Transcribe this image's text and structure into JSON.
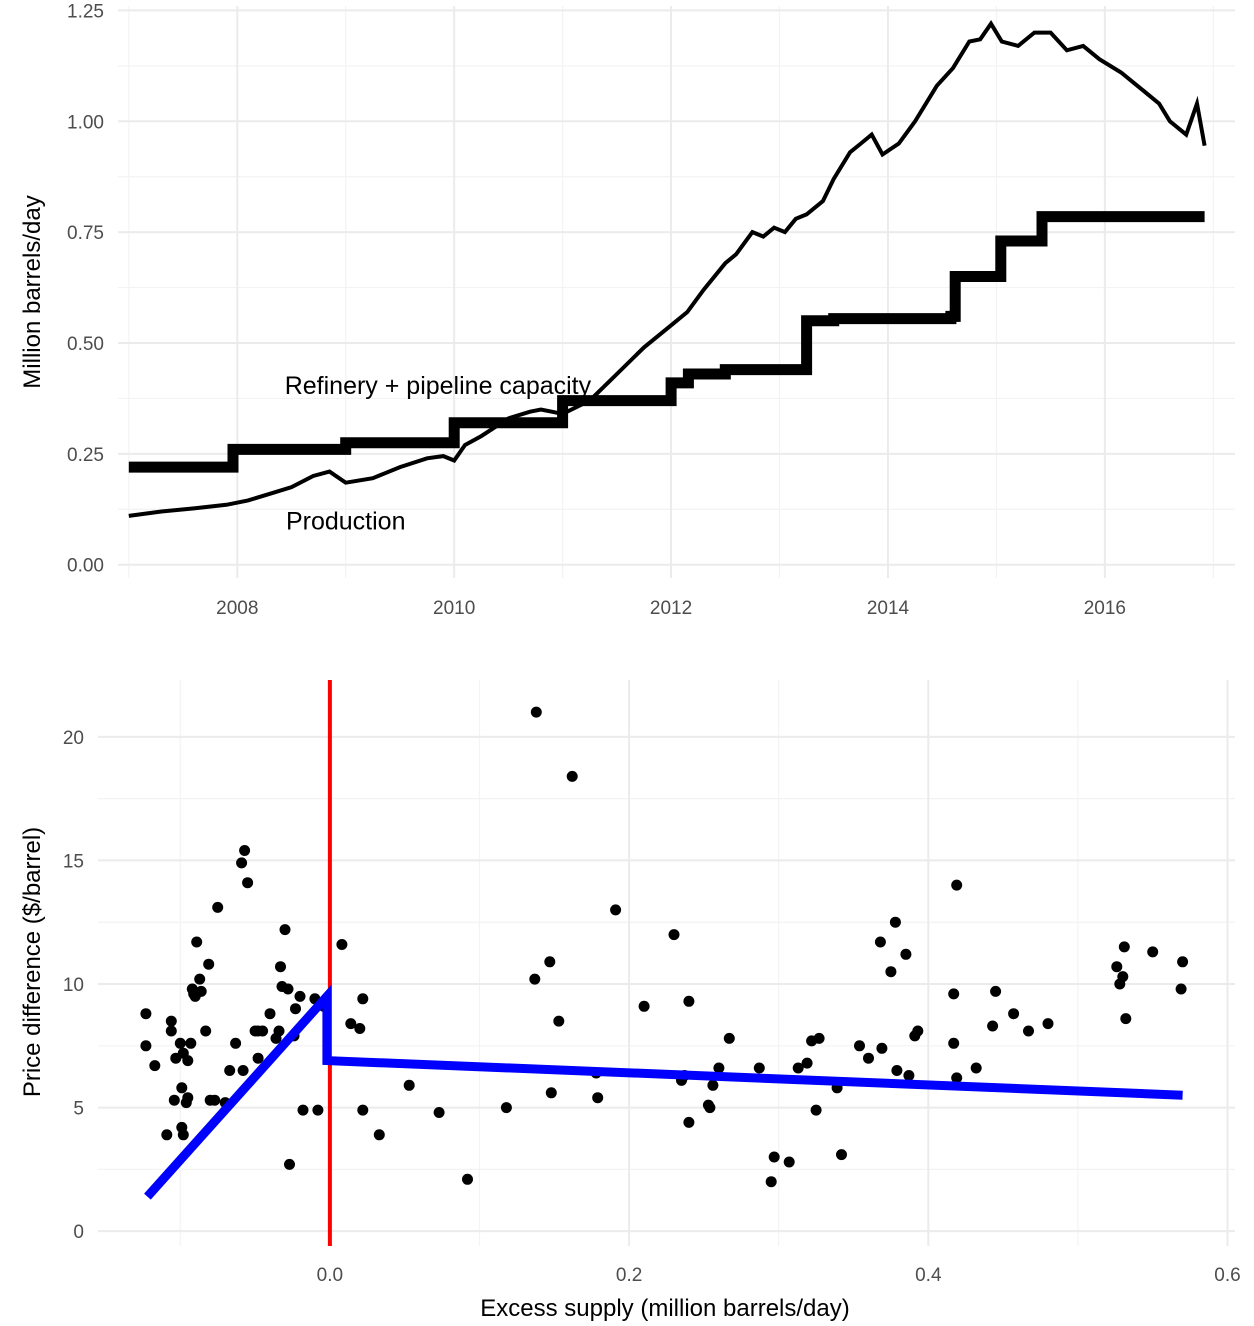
{
  "colors": {
    "background": "#ffffff",
    "grid": "#ebebeb",
    "series": "#000000",
    "vline": "#ff0000",
    "fit_line": "#0000ff",
    "points": "#000000"
  },
  "chart_data": [
    {
      "type": "line",
      "title": "",
      "xlabel": "",
      "ylabel": "Million barrels/day",
      "xlim": [
        2006.9,
        2017.2
      ],
      "ylim": [
        -0.03,
        1.26
      ],
      "x_ticks": [
        2008,
        2010,
        2012,
        2014,
        2016
      ],
      "x_tick_labels": [
        "2008",
        "2010",
        "2012",
        "2014",
        "2016"
      ],
      "y_ticks": [
        0,
        0.25,
        0.5,
        0.75,
        1.0,
        1.25
      ],
      "y_tick_labels": [
        "0.00",
        "0.25",
        "0.50",
        "0.75",
        "1.00",
        "1.25"
      ],
      "grid": true,
      "annotations": [
        {
          "text": "Refinery + pipeline capacity",
          "x": 2009.85,
          "y": 0.405
        },
        {
          "text": "Production",
          "x": 2009.0,
          "y": 0.1
        }
      ],
      "series": [
        {
          "name": "Refinery + pipeline capacity",
          "step": true,
          "x": [
            2007.0,
            2007.92,
            2007.96,
            2008.96,
            2009.0,
            2009.96,
            2010.0,
            2010.92,
            2011.0,
            2011.92,
            2012.0,
            2012.08,
            2012.16,
            2012.5,
            2013.2,
            2013.25,
            2013.5,
            2014.5,
            2014.58,
            2014.62,
            2014.96,
            2015.04,
            2015.34,
            2015.42,
            2016.92
          ],
          "y": [
            0.22,
            0.22,
            0.26,
            0.26,
            0.275,
            0.275,
            0.32,
            0.32,
            0.37,
            0.37,
            0.41,
            0.41,
            0.43,
            0.44,
            0.44,
            0.55,
            0.555,
            0.555,
            0.56,
            0.65,
            0.65,
            0.73,
            0.73,
            0.785,
            0.785
          ]
        },
        {
          "name": "Production",
          "step": false,
          "x": [
            2007.0,
            2007.3,
            2007.6,
            2007.9,
            2008.1,
            2008.3,
            2008.5,
            2008.7,
            2008.85,
            2009.0,
            2009.25,
            2009.5,
            2009.75,
            2009.9,
            2010.0,
            2010.1,
            2010.25,
            2010.5,
            2010.7,
            2010.8,
            2010.9,
            2011.0,
            2011.25,
            2011.5,
            2011.75,
            2012.0,
            2012.15,
            2012.3,
            2012.5,
            2012.6,
            2012.75,
            2012.85,
            2012.95,
            2013.05,
            2013.15,
            2013.25,
            2013.4,
            2013.5,
            2013.65,
            2013.75,
            2013.85,
            2013.95,
            2014.1,
            2014.25,
            2014.45,
            2014.6,
            2014.75,
            2014.85,
            2014.95,
            2015.05,
            2015.2,
            2015.35,
            2015.5,
            2015.65,
            2015.8,
            2015.95,
            2016.15,
            2016.3,
            2016.5,
            2016.6,
            2016.75,
            2016.85,
            2016.92
          ],
          "y": [
            0.11,
            0.12,
            0.127,
            0.135,
            0.145,
            0.16,
            0.175,
            0.2,
            0.21,
            0.185,
            0.195,
            0.22,
            0.24,
            0.245,
            0.235,
            0.27,
            0.29,
            0.33,
            0.345,
            0.35,
            0.345,
            0.34,
            0.37,
            0.43,
            0.49,
            0.54,
            0.57,
            0.62,
            0.68,
            0.7,
            0.75,
            0.74,
            0.76,
            0.75,
            0.78,
            0.79,
            0.82,
            0.87,
            0.93,
            0.95,
            0.97,
            0.925,
            0.95,
            1.0,
            1.08,
            1.12,
            1.18,
            1.185,
            1.22,
            1.18,
            1.17,
            1.2,
            1.2,
            1.16,
            1.17,
            1.14,
            1.11,
            1.08,
            1.04,
            1.0,
            0.97,
            1.04,
            0.945
          ]
        }
      ]
    },
    {
      "type": "scatter",
      "title": "",
      "xlabel": "Excess supply (million barrels/day)",
      "ylabel": "Price difference ($/barrel)",
      "xlim": [
        -0.155,
        0.605
      ],
      "ylim": [
        -0.6,
        22.3
      ],
      "x_ticks": [
        0.0,
        0.2,
        0.4,
        0.6
      ],
      "x_tick_labels": [
        "0.0",
        "0.2",
        "0.4",
        "0.6"
      ],
      "y_ticks": [
        0,
        5,
        10,
        15,
        20
      ],
      "y_tick_labels": [
        "0",
        "5",
        "10",
        "15",
        "20"
      ],
      "grid": true,
      "vline_x": 0.0,
      "fit_line": {
        "segments": [
          {
            "x": [
              -0.122,
              -0.002
            ],
            "y": [
              1.4,
              9.5
            ]
          },
          {
            "x": [
              -0.002,
              -0.002
            ],
            "y": [
              9.5,
              6.9
            ]
          },
          {
            "x": [
              -0.002,
              0.57
            ],
            "y": [
              6.9,
              5.5
            ]
          }
        ]
      },
      "points": {
        "x": [
          -0.123,
          -0.123,
          -0.117,
          -0.109,
          -0.106,
          -0.106,
          -0.104,
          -0.103,
          -0.1,
          -0.099,
          -0.099,
          -0.098,
          -0.098,
          -0.096,
          -0.095,
          -0.095,
          -0.093,
          -0.092,
          -0.091,
          -0.09,
          -0.089,
          -0.087,
          -0.086,
          -0.083,
          -0.081,
          -0.08,
          -0.077,
          -0.075,
          -0.07,
          -0.067,
          -0.063,
          -0.059,
          -0.057,
          -0.058,
          -0.055,
          -0.05,
          -0.048,
          -0.048,
          -0.045,
          -0.04,
          -0.036,
          -0.034,
          -0.033,
          -0.032,
          -0.03,
          -0.028,
          -0.027,
          -0.024,
          -0.023,
          -0.02,
          -0.018,
          -0.01,
          -0.008,
          -0.004,
          0.008,
          0.014,
          0.02,
          0.022,
          0.022,
          0.033,
          0.053,
          0.073,
          0.092,
          0.118,
          0.137,
          0.138,
          0.147,
          0.148,
          0.153,
          0.162,
          0.178,
          0.179,
          0.191,
          0.21,
          0.23,
          0.235,
          0.237,
          0.24,
          0.24,
          0.253,
          0.254,
          0.256,
          0.26,
          0.267,
          0.287,
          0.295,
          0.297,
          0.307,
          0.313,
          0.319,
          0.322,
          0.325,
          0.327,
          0.339,
          0.342,
          0.354,
          0.36,
          0.368,
          0.369,
          0.375,
          0.378,
          0.379,
          0.385,
          0.387,
          0.391,
          0.393,
          0.417,
          0.417,
          0.419,
          0.419,
          0.432,
          0.443,
          0.445,
          0.457,
          0.467,
          0.48,
          0.526,
          0.528,
          0.53,
          0.531,
          0.532,
          0.55,
          0.569,
          0.57
        ],
        "y": [
          8.8,
          7.5,
          6.7,
          3.9,
          8.5,
          8.1,
          5.3,
          7.0,
          7.6,
          5.8,
          4.2,
          7.2,
          3.9,
          5.2,
          5.4,
          6.9,
          7.6,
          9.8,
          9.6,
          9.5,
          11.7,
          10.2,
          9.7,
          8.1,
          10.8,
          5.3,
          5.3,
          13.1,
          5.2,
          6.5,
          7.6,
          14.9,
          15.4,
          6.5,
          14.1,
          8.1,
          7.0,
          8.1,
          8.1,
          8.8,
          7.8,
          8.1,
          10.7,
          9.9,
          12.2,
          9.8,
          2.7,
          7.9,
          9.0,
          9.5,
          4.9,
          9.4,
          4.9,
          9.1,
          11.6,
          8.4,
          8.2,
          9.4,
          4.9,
          3.9,
          5.9,
          4.8,
          2.1,
          5.0,
          10.2,
          21.0,
          10.9,
          5.6,
          8.5,
          18.4,
          6.4,
          5.4,
          13.0,
          9.1,
          12.0,
          6.1,
          6.3,
          4.4,
          9.3,
          5.1,
          5.0,
          5.9,
          6.6,
          7.8,
          6.6,
          2.0,
          3.0,
          2.8,
          6.6,
          6.8,
          7.7,
          4.9,
          7.8,
          5.8,
          3.1,
          7.5,
          7.0,
          11.7,
          7.4,
          10.5,
          12.5,
          6.5,
          11.2,
          6.3,
          7.9,
          8.1,
          7.6,
          9.6,
          14.0,
          6.2,
          6.6,
          8.3,
          9.7,
          8.8,
          8.1,
          8.4,
          10.7,
          10.0,
          10.3,
          11.5,
          8.6,
          11.3,
          9.8,
          10.9
        ]
      }
    }
  ]
}
